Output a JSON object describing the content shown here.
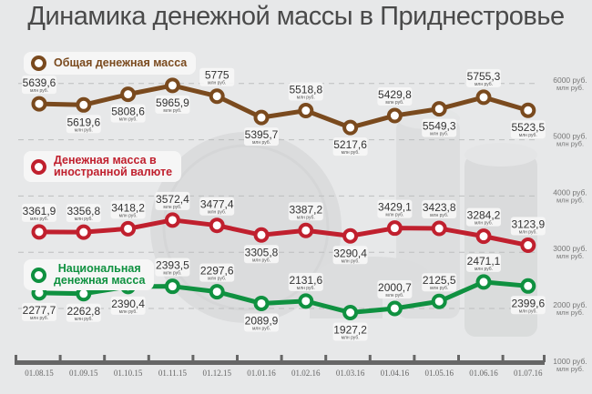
{
  "title": "Динамика денежной массы в Приднестровье",
  "chart_data": {
    "type": "line",
    "title": "Динамика денежной массы в Приднестровье",
    "x": [
      "01.08.15",
      "01.09.15",
      "01.10.15",
      "01.11.15",
      "01.12.15",
      "01.01.16",
      "01.02.16",
      "01.03.16",
      "01.04.16",
      "01.05.16",
      "01.06.16",
      "01.07.16"
    ],
    "unit": "млн руб.",
    "ylim": [
      1000,
      6000
    ],
    "yticks": [
      {
        "value": 6000,
        "label": "6000 руб.",
        "sub": "млн руб."
      },
      {
        "value": 5000,
        "label": "5000 руб.",
        "sub": "млн руб."
      },
      {
        "value": 4000,
        "label": "4000 руб.",
        "sub": "млн руб."
      },
      {
        "value": 3000,
        "label": "3000 руб.",
        "sub": "млн руб."
      },
      {
        "value": 2000,
        "label": "2000 руб.",
        "sub": "млн руб."
      },
      {
        "value": 1000,
        "label": "1000 руб.",
        "sub": "млн руб."
      }
    ],
    "grid": true,
    "series": [
      {
        "name": "Общая денежная масса",
        "color": "#7a4a1e",
        "values": [
          5639.6,
          5619.6,
          5808.6,
          5965.9,
          5775,
          5395.7,
          5518.8,
          5217.6,
          5429.8,
          5549.3,
          5755.3,
          5523.5
        ],
        "labels": [
          "5639,6",
          "5619,6",
          "5808,6",
          "5965,9",
          "5775",
          "5395,7",
          "5518,8",
          "5217,6",
          "5429,8",
          "5549,3",
          "5755,3",
          "5523,5"
        ]
      },
      {
        "name": "Денежная масса в иностранной валюте",
        "color": "#c0202e",
        "values": [
          3361.9,
          3356.8,
          3418.2,
          3572.4,
          3477.4,
          3305.8,
          3387.2,
          3290.4,
          3429.1,
          3423.8,
          3284.2,
          3123.9
        ],
        "labels": [
          "3361,9",
          "3356,8",
          "3418,2",
          "3572,4",
          "3477,4",
          "3305,8",
          "3387,2",
          "3290,4",
          "3429,1",
          "3423,8",
          "3284,2",
          "3123,9"
        ]
      },
      {
        "name": "Национальная денежная масса",
        "color": "#0f9140",
        "values": [
          2277.7,
          2262.8,
          2390.4,
          2393.5,
          2297.6,
          2089.9,
          2131.6,
          1927.2,
          2000.7,
          2125.5,
          2471.1,
          2399.6
        ],
        "labels": [
          "2277,7",
          "2262,8",
          "2390,4",
          "2393,5",
          "2297,6",
          "2089,9",
          "2131,6",
          "1927,2",
          "2000,7",
          "2125,5",
          "2471,1",
          "2399,6"
        ]
      }
    ]
  },
  "legend": {
    "total": "Общая денежная масса",
    "foreign_1": "Денежная масса в",
    "foreign_2": "иностранной валюте",
    "national_1": "Национальная",
    "national_2": "денежная масса"
  }
}
